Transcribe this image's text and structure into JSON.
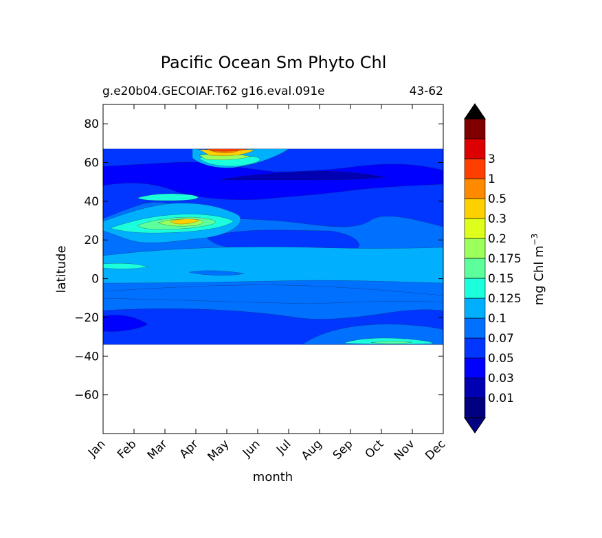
{
  "chart_data": {
    "type": "heatmap",
    "title": "Pacific Ocean Sm Phyto Chl",
    "subtitle_left": "g.e20b04.GECOIAF.T62 g16.eval.091e",
    "subtitle_right": "43-62",
    "xlabel": "month",
    "ylabel": "latitude",
    "x_ticks": [
      "Jan",
      "Feb",
      "Mar",
      "Apr",
      "May",
      "Jun",
      "Jul",
      "Aug",
      "Sep",
      "Oct",
      "Nov",
      "Dec"
    ],
    "y_ticks": [
      "80",
      "60",
      "40",
      "20",
      "0",
      "−20",
      "−40",
      "−60"
    ],
    "y_tick_values": [
      80,
      60,
      40,
      20,
      0,
      -20,
      -40,
      -60
    ],
    "ylim": [
      -80,
      90
    ],
    "data_lat_range": [
      -34,
      67
    ],
    "colorbar": {
      "label_text": "mg Chl m",
      "label_exponent": "−3",
      "levels": [
        "0.01",
        "0.03",
        "0.05",
        "0.07",
        "0.1",
        "0.125",
        "0.15",
        "0.175",
        "0.2",
        "0.3",
        "0.5",
        "1",
        "3"
      ],
      "colors": [
        "#000080",
        "#0000b2",
        "#0000ff",
        "#0036ff",
        "#0070ff",
        "#00b0ff",
        "#1bffdd",
        "#5cff9b",
        "#9bff5c",
        "#ddff1b",
        "#ffd000",
        "#ff8a00",
        "#ff3f00",
        "#dd0000",
        "#800000"
      ],
      "extend_min_color": "#000080",
      "extend_max_color": "#000000"
    },
    "grid": false
  }
}
